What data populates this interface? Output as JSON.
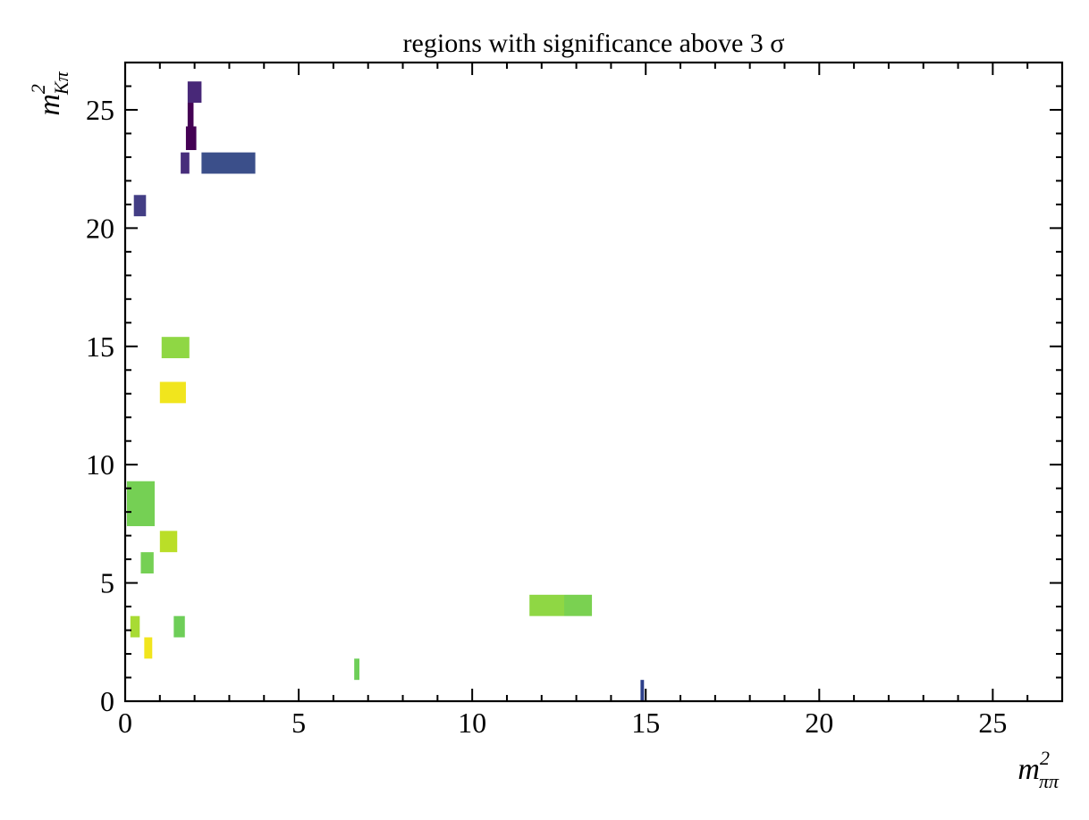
{
  "chart_data": {
    "type": "heatmap",
    "title": "regions with significance above 3 σ",
    "xlabel": {
      "base": "m",
      "sup": "2",
      "sub": "ππ"
    },
    "ylabel": {
      "base": "m",
      "sup": "2",
      "sub": "Kπ"
    },
    "xlim": [
      0,
      27
    ],
    "ylim": [
      0,
      27
    ],
    "xticks": [
      0,
      5,
      10,
      15,
      20,
      25
    ],
    "yticks": [
      0,
      5,
      10,
      15,
      20,
      25
    ],
    "grid": false,
    "rects": [
      {
        "x0": 1.8,
        "x1": 2.2,
        "y0": 25.3,
        "y1": 26.2,
        "color": "#482878"
      },
      {
        "x0": 1.8,
        "x1": 1.97,
        "y0": 24.3,
        "y1": 25.3,
        "color": "#440154"
      },
      {
        "x0": 1.75,
        "x1": 2.05,
        "y0": 23.3,
        "y1": 24.3,
        "color": "#440154"
      },
      {
        "x0": 1.6,
        "x1": 1.85,
        "y0": 22.3,
        "y1": 23.2,
        "color": "#472d7b"
      },
      {
        "x0": 2.2,
        "x1": 3.75,
        "y0": 22.3,
        "y1": 23.2,
        "color": "#3b4f8a"
      },
      {
        "x0": 0.25,
        "x1": 0.6,
        "y0": 20.5,
        "y1": 21.4,
        "color": "#433e85"
      },
      {
        "x0": 1.05,
        "x1": 1.85,
        "y0": 14.5,
        "y1": 15.4,
        "color": "#8fd744"
      },
      {
        "x0": 1.0,
        "x1": 1.75,
        "y0": 12.6,
        "y1": 13.5,
        "color": "#f1e51d"
      },
      {
        "x0": 0.05,
        "x1": 0.85,
        "y0": 7.4,
        "y1": 9.3,
        "color": "#75d054"
      },
      {
        "x0": 1.0,
        "x1": 1.5,
        "y0": 6.3,
        "y1": 7.2,
        "color": "#bade28"
      },
      {
        "x0": 0.45,
        "x1": 0.82,
        "y0": 5.4,
        "y1": 6.3,
        "color": "#75d054"
      },
      {
        "x0": 11.65,
        "x1": 12.65,
        "y0": 3.6,
        "y1": 4.5,
        "color": "#8fd744"
      },
      {
        "x0": 12.65,
        "x1": 13.45,
        "y0": 3.6,
        "y1": 4.5,
        "color": "#7ad151"
      },
      {
        "x0": 0.15,
        "x1": 0.42,
        "y0": 2.7,
        "y1": 3.6,
        "color": "#a8db34"
      },
      {
        "x0": 1.4,
        "x1": 1.72,
        "y0": 2.7,
        "y1": 3.6,
        "color": "#6ece58"
      },
      {
        "x0": 0.55,
        "x1": 0.78,
        "y0": 1.8,
        "y1": 2.7,
        "color": "#f1e51d"
      },
      {
        "x0": 6.6,
        "x1": 6.75,
        "y0": 0.9,
        "y1": 1.8,
        "color": "#6ece58"
      },
      {
        "x0": 14.85,
        "x1": 14.95,
        "y0": 0.0,
        "y1": 0.9,
        "color": "#2c3f8a"
      }
    ]
  }
}
